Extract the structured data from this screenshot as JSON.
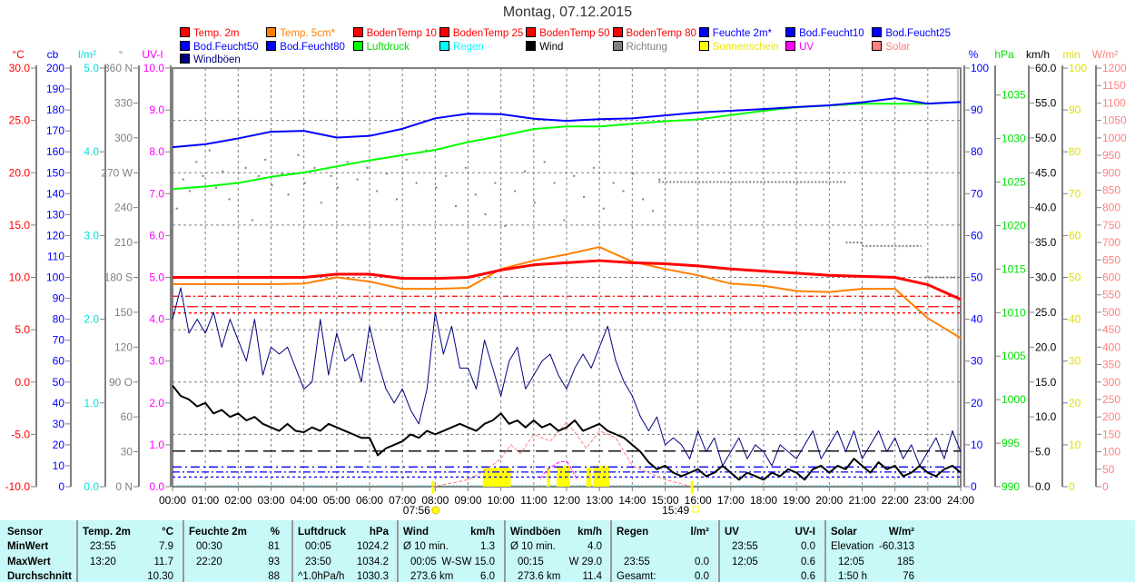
{
  "title": "Montag, 07.12.2015",
  "legend": [
    {
      "label": "Temp. 2m",
      "color": "#ff0000"
    },
    {
      "label": "Temp. 5cm*",
      "color": "#ff8000"
    },
    {
      "label": "BodenTemp 10",
      "color": "#ff0000"
    },
    {
      "label": "BodenTemp 25",
      "color": "#ff0000"
    },
    {
      "label": "BodenTemp 50",
      "color": "#ff0000"
    },
    {
      "label": "BodenTemp 80",
      "color": "#ff0000"
    },
    {
      "label": "Feuchte 2m*",
      "color": "#0000ff"
    },
    {
      "label": "Bod.Feucht10",
      "color": "#0000ff"
    },
    {
      "label": "Bod.Feucht25",
      "color": "#0000ff"
    },
    {
      "label": "Bod.Feucht50",
      "color": "#0000ff"
    },
    {
      "label": "Bod.Feucht80",
      "color": "#0000ff"
    },
    {
      "label": "Luftdruck",
      "color": "#00ff00"
    },
    {
      "label": "Regen",
      "color": "#00ffff"
    },
    {
      "label": "Wind",
      "color": "#000000"
    },
    {
      "label": "Richtung",
      "color": "#808080"
    },
    {
      "label": "Sonnenschein",
      "color": "#ffff00"
    },
    {
      "label": "UV",
      "color": "#ff00ff"
    },
    {
      "label": "Solar",
      "color": "#ff8080"
    },
    {
      "label": "Windböen",
      "color": "#000080"
    }
  ],
  "chart_data": {
    "type": "line",
    "title": "Montag, 07.12.2015",
    "x_ticks": [
      "00:00",
      "01:00",
      "02:00",
      "03:00",
      "04:00",
      "05:00",
      "06:00",
      "07:00",
      "08:00",
      "09:00",
      "10:00",
      "11:00",
      "12:00",
      "13:00",
      "14:00",
      "15:00",
      "16:00",
      "17:00",
      "18:00",
      "19:00",
      "20:00",
      "21:00",
      "22:00",
      "23:00",
      "24:00"
    ],
    "xlim": [
      0,
      24
    ],
    "sunrise": {
      "time": "07:56",
      "hour": 7.93
    },
    "sunset": {
      "time": "15:49",
      "hour": 15.82
    },
    "axes": {
      "temp": {
        "unit": "°C",
        "color": "#ff0000",
        "side": "left",
        "min": -10,
        "max": 30,
        "ticks": [
          "30.0",
          "25.0",
          "20.0",
          "15.0",
          "10.0",
          "5.0",
          "0.0",
          "-5.0",
          "-10.0"
        ]
      },
      "cb": {
        "unit": "cb",
        "color": "#0000ff",
        "side": "left",
        "min": 0,
        "max": 200,
        "ticks": [
          "200",
          "190",
          "180",
          "170",
          "160",
          "150",
          "140",
          "130",
          "120",
          "110",
          "100",
          "90",
          "80",
          "70",
          "60",
          "50",
          "40",
          "30",
          "20",
          "10",
          "0"
        ]
      },
      "rain": {
        "unit": "l/m²",
        "color": "#00e0e0",
        "side": "left",
        "min": 0,
        "max": 5,
        "ticks": [
          "5.0",
          "4.0",
          "3.0",
          "2.0",
          "1.0",
          "0.0"
        ]
      },
      "dir": {
        "unit": "°",
        "color": "#808080",
        "side": "left",
        "min": 0,
        "max": 360,
        "ticks": [
          "360 N",
          "330",
          "300",
          "270 W",
          "240",
          "210",
          "180 S",
          "150",
          "120",
          "90 O",
          "60",
          "30",
          "0 N"
        ]
      },
      "uvi": {
        "unit": "UV-I",
        "color": "#ff00ff",
        "side": "left",
        "min": 0,
        "max": 10,
        "ticks": [
          "10.0",
          "9.0",
          "8.0",
          "7.0",
          "6.0",
          "5.0",
          "4.0",
          "3.0",
          "2.0",
          "1.0",
          "0.0"
        ]
      },
      "hum": {
        "unit": "%",
        "color": "#0000ff",
        "side": "right",
        "min": 0,
        "max": 100,
        "ticks": [
          "100",
          "90",
          "80",
          "70",
          "60",
          "50",
          "40",
          "30",
          "20",
          "10",
          "0"
        ]
      },
      "hpa": {
        "unit": "hPa",
        "color": "#00e000",
        "side": "right",
        "min": 990,
        "max": 1038.1,
        "ticks": [
          "1035",
          "1030",
          "1025",
          "1020",
          "1015",
          "1010",
          "1005",
          "1000",
          "995",
          "990"
        ]
      },
      "kmh": {
        "unit": "km/h",
        "color": "#000000",
        "side": "right",
        "min": 0,
        "max": 60,
        "ticks": [
          "60.0",
          "55.0",
          "50.0",
          "45.0",
          "40.0",
          "35.0",
          "30.0",
          "25.0",
          "20.0",
          "15.0",
          "10.0",
          "5.0",
          "0.0"
        ]
      },
      "min": {
        "unit": "min",
        "color": "#e0e000",
        "side": "right",
        "min": 0,
        "max": 100,
        "ticks": [
          "100",
          "90",
          "80",
          "70",
          "60",
          "50",
          "40",
          "30",
          "20",
          "10",
          "0"
        ]
      },
      "wm2": {
        "unit": "W/m²",
        "color": "#ff8080",
        "side": "right",
        "min": 0,
        "max": 1200,
        "ticks": [
          "1200",
          "1150",
          "1100",
          "1050",
          "1000",
          "950",
          "900",
          "850",
          "800",
          "750",
          "700",
          "650",
          "600",
          "550",
          "500",
          "450",
          "400",
          "350",
          "300",
          "250",
          "200",
          "150",
          "100",
          "50",
          "0"
        ]
      }
    },
    "series": [
      {
        "name": "Luftdruck",
        "axis": "hpa",
        "color": "#00ff00",
        "width": 2,
        "step": 1,
        "values": [
          1024.2,
          1024.5,
          1024.9,
          1025.6,
          1026.1,
          1026.8,
          1027.5,
          1028.1,
          1028.7,
          1029.6,
          1030.3,
          1031.1,
          1031.4,
          1031.4,
          1031.7,
          1032.0,
          1032.2,
          1032.7,
          1033.2,
          1033.6,
          1033.8,
          1034.0,
          1034.0,
          1034.0,
          1034.2
        ]
      },
      {
        "name": "Feuchte 2m",
        "axis": "hum",
        "color": "#0000ff",
        "width": 2,
        "step": 1,
        "values": [
          81.1,
          81.8,
          83.2,
          84.8,
          85.0,
          83.4,
          83.8,
          85.5,
          88.0,
          89.1,
          89.0,
          87.9,
          87.4,
          87.8,
          88.0,
          88.7,
          89.4,
          89.8,
          90.2,
          90.7,
          91.1,
          91.8,
          92.8,
          91.5,
          91.9
        ]
      },
      {
        "name": "Temp. 5cm",
        "axis": "temp",
        "color": "#ff8000",
        "width": 2,
        "step": 1,
        "values": [
          9.35,
          9.35,
          9.35,
          9.35,
          9.4,
          10.0,
          9.6,
          8.9,
          8.9,
          9.0,
          10.8,
          11.6,
          12.2,
          12.9,
          11.5,
          10.8,
          10.2,
          9.4,
          9.2,
          8.7,
          8.6,
          8.9,
          8.9,
          6.1,
          4.2
        ]
      },
      {
        "name": "Temp. 2m",
        "axis": "temp",
        "color": "#ff0000",
        "width": 3,
        "step": 1,
        "values": [
          10.0,
          10.0,
          10.0,
          10.0,
          10.0,
          10.3,
          10.3,
          9.9,
          9.9,
          10.0,
          10.7,
          11.2,
          11.4,
          11.6,
          11.4,
          11.3,
          11.1,
          10.8,
          10.6,
          10.4,
          10.2,
          10.1,
          10.0,
          9.3,
          7.9
        ]
      },
      {
        "name": "Windböen",
        "axis": "kmh",
        "color": "#000080",
        "width": 1,
        "step": 0.25,
        "values": [
          24,
          28.5,
          22,
          24,
          22,
          25,
          20,
          24,
          21,
          18,
          24,
          16,
          20,
          19,
          20,
          17,
          14,
          15,
          24,
          16,
          22,
          18,
          19,
          15,
          23,
          18,
          14,
          12,
          14,
          11,
          9,
          14,
          25,
          19,
          23,
          17,
          17,
          14,
          21,
          17,
          13,
          18,
          20,
          14,
          16,
          18,
          19,
          16,
          14,
          17,
          19,
          17,
          20,
          23,
          18,
          15,
          13,
          10,
          8,
          10,
          6,
          7,
          6,
          4,
          8,
          5,
          7,
          3,
          5,
          7,
          4,
          6,
          5,
          3,
          6,
          5,
          4,
          6,
          8,
          4,
          6,
          8,
          5,
          8,
          4,
          6,
          8,
          5,
          7,
          4,
          6,
          3,
          5,
          7,
          4,
          8,
          5
        ]
      },
      {
        "name": "Wind",
        "axis": "kmh",
        "color": "#000000",
        "width": 2,
        "step": 0.25,
        "values": [
          14.5,
          13,
          12.5,
          11.5,
          12,
          10.5,
          11,
          10,
          10.5,
          9.5,
          10,
          9,
          8.5,
          8,
          9,
          8,
          7.8,
          8.5,
          8,
          9,
          8.5,
          8,
          7.5,
          7,
          7,
          4.5,
          5.5,
          6,
          6.5,
          7.5,
          7,
          8,
          7.5,
          8,
          8.5,
          9,
          8.5,
          8,
          9,
          9.5,
          10.5,
          9,
          9.5,
          8.5,
          9.5,
          8.5,
          9,
          8,
          8.5,
          9.5,
          8,
          8.5,
          9,
          8,
          7.5,
          7,
          6,
          5,
          3.5,
          2.5,
          3,
          2,
          1.5,
          2,
          2.5,
          1.5,
          2,
          3,
          2,
          1,
          2,
          1.5,
          1,
          2,
          1.5,
          2.5,
          2,
          1,
          2.5,
          3,
          2,
          3,
          2.5,
          4,
          3,
          2,
          3.5,
          2.5,
          3,
          1.5,
          2,
          3,
          2,
          1.5,
          2.5,
          3,
          2
        ]
      }
    ],
    "hlines": [
      {
        "name": "BodenTemp 10",
        "axis": "temp",
        "color": "#ff0000",
        "value": 8.2,
        "dash": "6 3 2 3"
      },
      {
        "name": "BodenTemp 25",
        "axis": "temp",
        "color": "#ff0000",
        "value": 7.2,
        "dash": "12 4"
      },
      {
        "name": "BodenTemp 50",
        "axis": "temp",
        "color": "#ff0000",
        "value": 6.6,
        "dash": "3 3"
      },
      {
        "name": "Bod.Feucht10",
        "axis": "cb",
        "color": "#000000",
        "value": 17,
        "dash": "14 6"
      },
      {
        "name": "Bod.Feucht25",
        "axis": "cb",
        "color": "#0000ff",
        "value": 9.4,
        "dash": "10 4 2 4"
      },
      {
        "name": "Bod.Feucht50",
        "axis": "cb",
        "color": "#0000ff",
        "value": 7,
        "dash": "8 3 2 3"
      },
      {
        "name": "Bod.Feucht80",
        "axis": "cb",
        "color": "#0000ff",
        "value": 4.6,
        "dash": "3 3"
      }
    ],
    "direction_points": [
      [
        0.1,
        240
      ],
      [
        0.3,
        265
      ],
      [
        0.5,
        255
      ],
      [
        0.7,
        280
      ],
      [
        0.9,
        268
      ],
      [
        1.1,
        290
      ],
      [
        1.3,
        258
      ],
      [
        1.5,
        272
      ],
      [
        1.7,
        248
      ],
      [
        1.9,
        262
      ],
      [
        2.2,
        275
      ],
      [
        2.4,
        230
      ],
      [
        2.6,
        268
      ],
      [
        2.8,
        282
      ],
      [
        3.0,
        260
      ],
      [
        3.3,
        270
      ],
      [
        3.5,
        252
      ],
      [
        3.8,
        286
      ],
      [
        4.0,
        262
      ],
      [
        4.3,
        275
      ],
      [
        4.5,
        245
      ],
      [
        4.8,
        268
      ],
      [
        5.0,
        258
      ],
      [
        5.3,
        280
      ],
      [
        5.6,
        265
      ],
      [
        5.9,
        275
      ],
      [
        6.2,
        255
      ],
      [
        6.5,
        270
      ],
      [
        6.8,
        248
      ],
      [
        7.1,
        282
      ],
      [
        7.4,
        262
      ],
      [
        7.7,
        290
      ],
      [
        8.0,
        258
      ],
      [
        8.3,
        268
      ],
      [
        8.6,
        242
      ],
      [
        8.9,
        275
      ],
      [
        9.2,
        252
      ],
      [
        9.5,
        235
      ],
      [
        9.8,
        262
      ],
      [
        10.1,
        225
      ],
      [
        10.4,
        255
      ],
      [
        10.7,
        272
      ],
      [
        11.0,
        245
      ],
      [
        11.3,
        280
      ],
      [
        11.6,
        262
      ],
      [
        11.9,
        230
      ],
      [
        12.2,
        268
      ],
      [
        12.5,
        250
      ],
      [
        12.8,
        275
      ],
      [
        13.1,
        240
      ],
      [
        13.4,
        262
      ],
      [
        13.7,
        255
      ],
      [
        14.0,
        270
      ],
      [
        14.3,
        248
      ],
      [
        14.6,
        238
      ],
      [
        14.8,
        265
      ]
    ],
    "direction_segments": [
      {
        "from": 14.8,
        "to": 20.5,
        "value": 262
      },
      {
        "from": 20.5,
        "to": 21.0,
        "value": 210
      },
      {
        "from": 21.0,
        "to": 22.8,
        "value": 207
      },
      {
        "from": 22.9,
        "to": 24,
        "value": 180
      }
    ],
    "sunshine_blocks": [
      {
        "from": 9.45,
        "to": 10.3,
        "value": 4.5
      },
      {
        "from": 11.4,
        "to": 11.5,
        "value": 4.5
      },
      {
        "from": 11.7,
        "to": 12.1,
        "value": 5
      },
      {
        "from": 12.6,
        "to": 12.75,
        "value": 4.5
      },
      {
        "from": 12.8,
        "to": 13.3,
        "value": 5
      }
    ],
    "solar": {
      "axis": "wm2",
      "color": "#ff8080",
      "hours": [
        7.9,
        8.5,
        9.0,
        9.5,
        10.0,
        10.3,
        10.6,
        11.0,
        11.5,
        12.0,
        12.3,
        12.6,
        13.0,
        13.5,
        14.0,
        14.5,
        15.0,
        15.5,
        15.8
      ],
      "values": [
        0,
        10,
        20,
        45,
        80,
        120,
        95,
        150,
        130,
        185,
        150,
        110,
        160,
        140,
        60,
        40,
        20,
        8,
        0
      ]
    },
    "uv": {
      "axis": "uvi",
      "color": "#ff00ff",
      "hours": [
        11.2,
        11.4,
        11.6,
        11.8,
        12.0,
        12.1,
        12.3
      ],
      "values": [
        0.2,
        0.4,
        0.5,
        0.6,
        0.6,
        0.5,
        0.2
      ]
    }
  },
  "stats": {
    "sensor": {
      "head": "Sensor",
      "rows": [
        "MinWert",
        "MaxWert",
        "Durchschnitt"
      ]
    },
    "groups": [
      {
        "name": "Temp. 2m",
        "unit": "°C",
        "rows": [
          [
            "23:55",
            "7.9"
          ],
          [
            "13:20",
            "11.7"
          ],
          [
            "",
            "10.30"
          ]
        ]
      },
      {
        "name": "Feuchte 2m",
        "unit": "%",
        "rows": [
          [
            "00:30",
            "81"
          ],
          [
            "22:20",
            "93"
          ],
          [
            "",
            "88"
          ]
        ]
      },
      {
        "name": "Luftdruck",
        "unit": "hPa",
        "rows": [
          [
            "00:05",
            "1024.2"
          ],
          [
            "23:50",
            "1034.2"
          ],
          [
            "^1.0hPa/h",
            "1030.3"
          ]
        ]
      },
      {
        "name": "Wind",
        "unit": "km/h",
        "rows": [
          [
            "Ø 10 min.",
            "1.3"
          ],
          [
            "00:05",
            "W-SW 15.0"
          ],
          [
            "273.6 km",
            "6.0"
          ]
        ]
      },
      {
        "name": "Windböen",
        "unit": "km/h",
        "rows": [
          [
            "Ø 10 min.",
            "4.0"
          ],
          [
            "00:15",
            "W 29.0"
          ],
          [
            "273.6 km",
            "11.4"
          ]
        ]
      },
      {
        "name": "Regen",
        "unit": "l/m²",
        "rows": [
          [
            "",
            ""
          ],
          [
            "23:55",
            "0.0"
          ],
          [
            "Gesamt:",
            "0.0"
          ]
        ]
      },
      {
        "name": "UV",
        "unit": "UV-I",
        "rows": [
          [
            "23:55",
            "0.0"
          ],
          [
            "12:05",
            "0.6"
          ],
          [
            "",
            "0.6"
          ]
        ]
      },
      {
        "name": "Solar",
        "unit": "W/m²",
        "rows": [
          [
            "Elevation",
            "-60.313"
          ],
          [
            "12:05",
            "185"
          ],
          [
            "1:50 h",
            "76"
          ]
        ]
      }
    ]
  }
}
